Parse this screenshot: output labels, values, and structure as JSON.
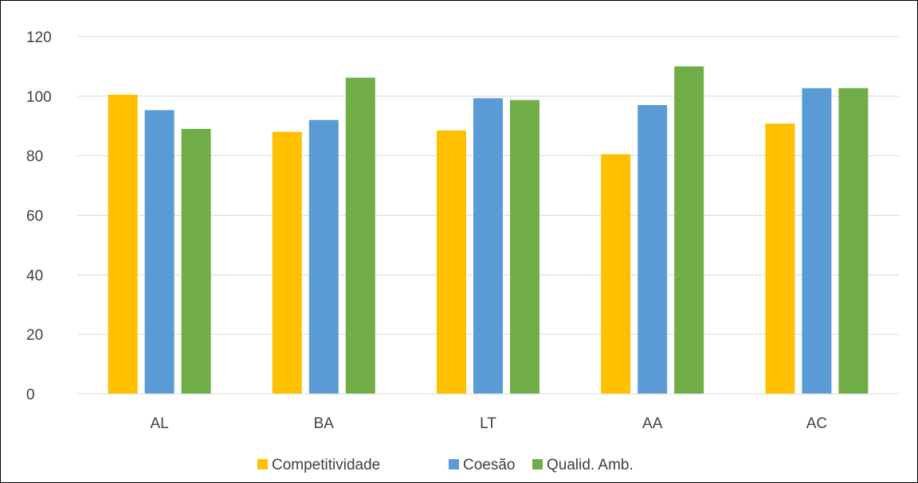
{
  "chart_data": {
    "type": "bar",
    "categories": [
      "AL",
      "BA",
      "LT",
      "AA",
      "AC"
    ],
    "series": [
      {
        "name": "Competitividade",
        "values": [
          100.5,
          88,
          88.5,
          80.5,
          90.8
        ],
        "color": "#FFC000"
      },
      {
        "name": "Coesão",
        "values": [
          95.3,
          92,
          99.3,
          97,
          102.7
        ],
        "color": "#5B9BD5"
      },
      {
        "name": "Qualid. Amb.",
        "values": [
          89,
          106.2,
          98.7,
          110,
          102.7
        ],
        "color": "#70AD47"
      }
    ],
    "title": "",
    "xlabel": "",
    "ylabel": "",
    "ylim": [
      0,
      120
    ],
    "yticks": [
      0,
      20,
      40,
      60,
      80,
      100,
      120
    ],
    "grid": true,
    "legend_position": "bottom",
    "gridline_color": "#D9D9D9"
  }
}
